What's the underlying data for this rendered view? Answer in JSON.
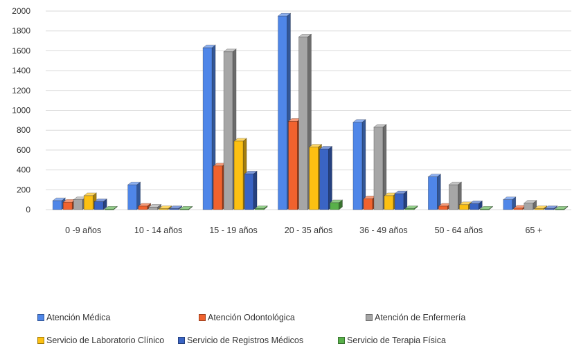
{
  "chart_data": {
    "type": "bar",
    "categories": [
      "0 -9 años",
      "10 - 14 años",
      "15 - 19 años",
      "20 - 35 años",
      "36 - 49 años",
      "50 - 64 años",
      "65 +"
    ],
    "ylim": [
      0,
      2000
    ],
    "yticks": [
      0,
      200,
      400,
      600,
      800,
      1000,
      1200,
      1400,
      1600,
      1800,
      2000
    ],
    "grid": true,
    "legend_position": "bottom",
    "series": [
      {
        "name": "Atención Médica",
        "color": "#4f86e8",
        "values": [
          90,
          250,
          1630,
          1950,
          880,
          330,
          100
        ]
      },
      {
        "name": "Atención Odontológica",
        "color": "#f0622e",
        "values": [
          75,
          35,
          440,
          890,
          110,
          35,
          15
        ]
      },
      {
        "name": "Atención de Enfermería",
        "color": "#a6a6a6",
        "values": [
          100,
          25,
          1590,
          1740,
          830,
          250,
          65
        ]
      },
      {
        "name": "Servicio de Laboratorio Clínico",
        "color": "#fcc012",
        "values": [
          140,
          10,
          690,
          630,
          140,
          50,
          10
        ]
      },
      {
        "name": "Servicio de Registros Médicos",
        "color": "#3a64c4",
        "values": [
          80,
          10,
          360,
          610,
          160,
          60,
          10
        ]
      },
      {
        "name": "Servicio de Terapia Física",
        "color": "#58b04a",
        "values": [
          5,
          5,
          10,
          70,
          10,
          5,
          5
        ]
      }
    ]
  }
}
